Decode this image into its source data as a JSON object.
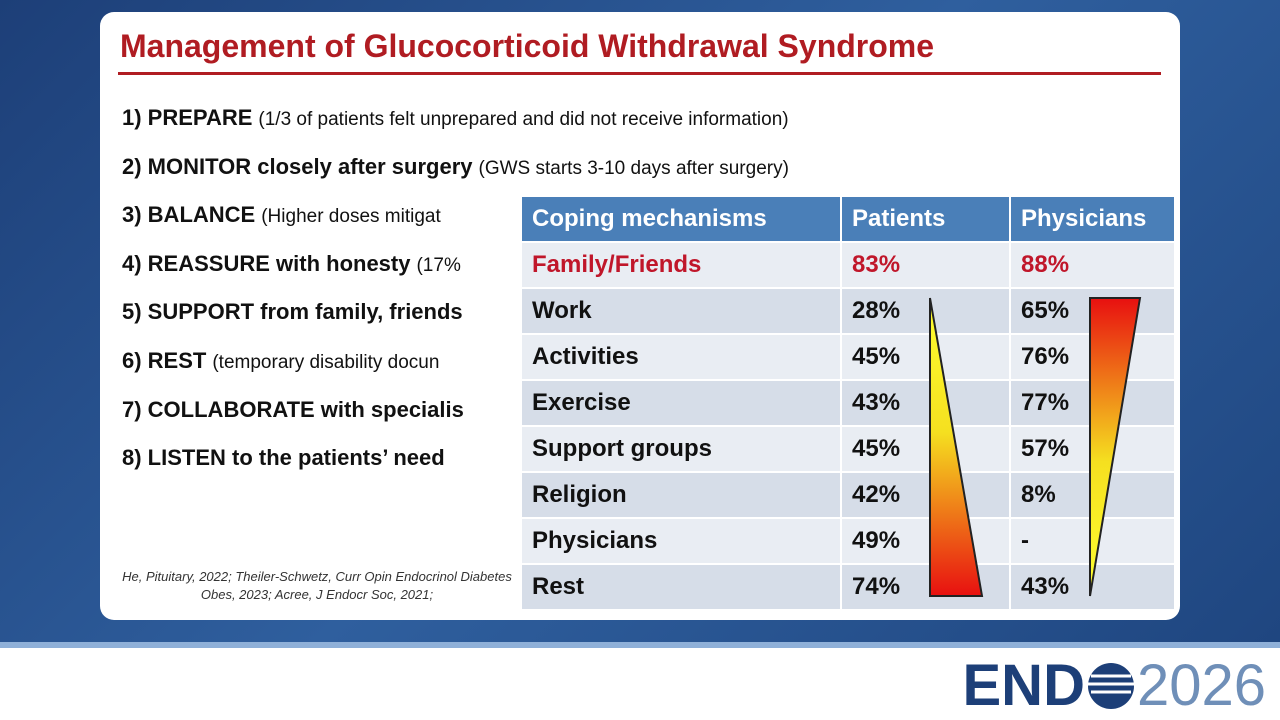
{
  "header": {
    "title": "Management of Glucocorticoid Withdrawal Syndrome"
  },
  "items": [
    {
      "bold": "1) PREPARE",
      "note": "(1/3 of patients felt unprepared and did not receive information)"
    },
    {
      "bold": "2) MONITOR closely after surgery",
      "note": "(GWS starts 3-10 days after surgery)"
    },
    {
      "bold": "3) BALANCE",
      "note": "(Higher doses mitigat"
    },
    {
      "bold": "4) REASSURE with honesty",
      "note": "(17%"
    },
    {
      "bold": "5) SUPPORT from family, friends"
    },
    {
      "bold": "6) REST",
      "note": "(temporary disability docun"
    },
    {
      "bold": "7) COLLABORATE with specialis"
    },
    {
      "bold": "8) LISTEN to the patients’ need"
    }
  ],
  "citation": "He, Pituitary, 2022; Theiler-Schwetz, Curr Opin Endocrinol Diabetes Obes, 2023; Acree, J Endocr Soc, 2021;",
  "table": {
    "header": [
      "Coping mechanisms",
      "Patients",
      "Physicians"
    ],
    "rows": [
      [
        "Family/Friends",
        "83%",
        "88%"
      ],
      [
        "Work",
        "28%",
        "65%"
      ],
      [
        "Activities",
        "45%",
        "76%"
      ],
      [
        "Exercise",
        "43%",
        "77%"
      ],
      [
        "Support groups",
        "45%",
        "57%"
      ],
      [
        "Religion",
        "42%",
        "8%"
      ],
      [
        "Physicians",
        "49%",
        "-"
      ],
      [
        "Rest",
        "74%",
        "43%"
      ]
    ]
  },
  "logo": {
    "left": "END",
    "right": "2026"
  }
}
